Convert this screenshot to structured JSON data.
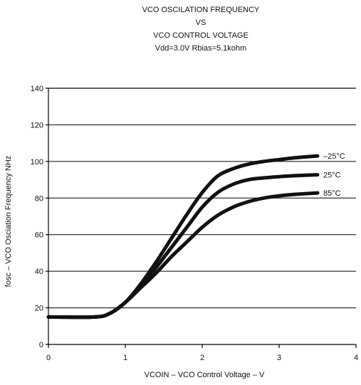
{
  "chart_data": {
    "type": "line",
    "title": [
      "VCO OSCILATION FREQUENCY",
      "VS",
      "VCO CONTROL VOLTAGE",
      "Vdd=3.0V Rbias=5.1kohm"
    ],
    "xlabel": "VCOIN – VCO Control Voltage – V",
    "ylabel": "fosc – VCO Osciation Frequency NHz",
    "xlim": [
      0,
      4
    ],
    "ylim": [
      0,
      140
    ],
    "x_ticks": [
      "0",
      "1",
      "2",
      "3",
      "4"
    ],
    "y_ticks": [
      "0",
      "20",
      "40",
      "60",
      "80",
      "100",
      "120",
      "140"
    ],
    "grid": "horizontal",
    "series": [
      {
        "name": "–25°C",
        "x": [
          0,
          0.6,
          0.8,
          1.0,
          1.2,
          1.4,
          1.6,
          1.8,
          2.0,
          2.2,
          2.4,
          2.6,
          2.8,
          3.0,
          3.2,
          3.5
        ],
        "y": [
          15,
          15,
          17,
          23,
          33,
          45,
          58,
          71,
          83,
          92,
          96,
          98.5,
          100,
          101,
          102,
          103
        ]
      },
      {
        "name": "25°C",
        "x": [
          0,
          0.6,
          0.8,
          1.0,
          1.2,
          1.4,
          1.6,
          1.8,
          2.0,
          2.2,
          2.4,
          2.6,
          2.8,
          3.0,
          3.2,
          3.5
        ],
        "y": [
          15,
          15,
          17,
          23,
          32,
          42,
          53,
          64,
          75,
          83,
          87.5,
          90,
          91,
          91.7,
          92.2,
          92.7
        ]
      },
      {
        "name": "85°C",
        "x": [
          0,
          0.6,
          0.8,
          1.0,
          1.2,
          1.4,
          1.6,
          1.8,
          2.0,
          2.2,
          2.4,
          2.6,
          2.8,
          3.0,
          3.2,
          3.5
        ],
        "y": [
          15,
          15,
          17,
          23,
          31,
          39,
          48,
          56,
          64,
          70.5,
          75,
          78,
          80,
          81.2,
          82,
          82.8
        ]
      }
    ]
  }
}
